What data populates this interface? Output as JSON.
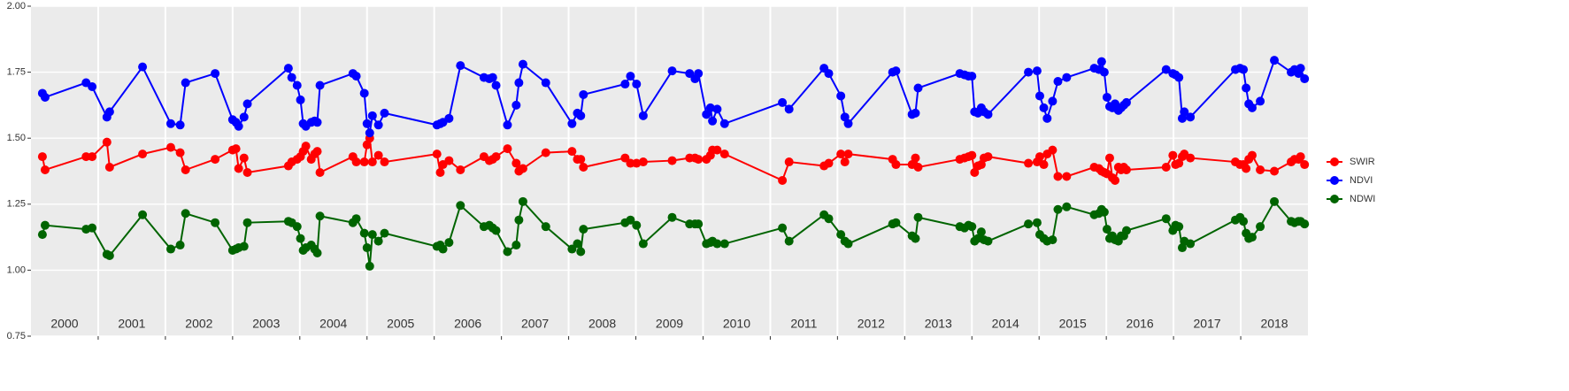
{
  "chart_data": {
    "type": "line",
    "xlim": [
      2000,
      2019
    ],
    "xticks": [
      2001,
      2002,
      2003,
      2004,
      2005,
      2006,
      2007,
      2008,
      2009,
      2010,
      2011,
      2012,
      2013,
      2014,
      2015,
      2016,
      2017,
      2018
    ],
    "x_labels": [
      {
        "value": 2000.5,
        "label": "2000"
      },
      {
        "value": 2001.5,
        "label": "2001"
      },
      {
        "value": 2002.5,
        "label": "2002"
      },
      {
        "value": 2003.5,
        "label": "2003"
      },
      {
        "value": 2004.5,
        "label": "2004"
      },
      {
        "value": 2005.5,
        "label": "2005"
      },
      {
        "value": 2006.5,
        "label": "2006"
      },
      {
        "value": 2007.5,
        "label": "2007"
      },
      {
        "value": 2008.5,
        "label": "2008"
      },
      {
        "value": 2009.5,
        "label": "2009"
      },
      {
        "value": 2010.5,
        "label": "2010"
      },
      {
        "value": 2011.5,
        "label": "2011"
      },
      {
        "value": 2012.5,
        "label": "2012"
      },
      {
        "value": 2013.5,
        "label": "2013"
      },
      {
        "value": 2014.5,
        "label": "2014"
      },
      {
        "value": 2015.5,
        "label": "2015"
      },
      {
        "value": 2016.5,
        "label": "2016"
      },
      {
        "value": 2017.5,
        "label": "2017"
      },
      {
        "value": 2018.5,
        "label": "2018"
      }
    ],
    "ylim": [
      0.75,
      2.0
    ],
    "yticks": [
      0.75,
      {
        "value": 1.0,
        "label": "1.00"
      },
      1.25,
      {
        "value": 1.5,
        "label": "1.50"
      },
      1.75,
      {
        "value": 2.0,
        "label": "2.00"
      }
    ],
    "grid": true,
    "legend": "right",
    "x": [
      2000.17,
      2000.21,
      2000.82,
      2000.91,
      2001.13,
      2001.17,
      2001.66,
      2002.08,
      2002.22,
      2002.3,
      2002.74,
      2003.0,
      2003.05,
      2003.09,
      2003.17,
      2003.22,
      2003.83,
      2003.88,
      2003.96,
      2004.01,
      2004.05,
      2004.09,
      2004.17,
      2004.22,
      2004.26,
      2004.3,
      2004.79,
      2004.84,
      2004.96,
      2005.0,
      2005.04,
      2005.08,
      2005.17,
      2005.26,
      2006.04,
      2006.09,
      2006.13,
      2006.22,
      2006.39,
      2006.74,
      2006.82,
      2006.87,
      2006.92,
      2007.09,
      2007.22,
      2007.26,
      2007.32,
      2007.66,
      2008.05,
      2008.13,
      2008.18,
      2008.22,
      2008.84,
      2008.92,
      2009.01,
      2009.11,
      2009.54,
      2009.8,
      2009.88,
      2009.93,
      2010.05,
      2010.11,
      2010.14,
      2010.21,
      2010.32,
      2011.18,
      2011.28,
      2011.8,
      2011.87,
      2012.05,
      2012.11,
      2012.16,
      2012.82,
      2012.87,
      2013.11,
      2013.16,
      2013.2,
      2013.82,
      2013.89,
      2013.95,
      2014.0,
      2014.04,
      2014.09,
      2014.14,
      2014.18,
      2014.24,
      2014.84,
      2014.97,
      2015.01,
      2015.07,
      2015.12,
      2015.2,
      2015.28,
      2015.41,
      2015.82,
      2015.89,
      2015.93,
      2015.97,
      2016.01,
      2016.05,
      2016.09,
      2016.13,
      2016.18,
      2016.22,
      2016.26,
      2016.3,
      2016.89,
      2016.99,
      2017.03,
      2017.08,
      2017.13,
      2017.16,
      2017.25,
      2017.92,
      2017.99,
      2018.04,
      2018.08,
      2018.12,
      2018.17,
      2018.29,
      2018.5,
      2018.75,
      2018.8,
      2018.86,
      2018.89,
      2018.95
    ],
    "series": [
      {
        "name": "SWIR",
        "color": "#ff0000",
        "values": [
          1.43,
          1.38,
          1.43,
          1.43,
          1.485,
          1.39,
          1.44,
          1.465,
          1.445,
          1.38,
          1.42,
          1.455,
          1.46,
          1.385,
          1.425,
          1.37,
          1.395,
          1.41,
          1.42,
          1.43,
          1.45,
          1.47,
          1.42,
          1.44,
          1.45,
          1.37,
          1.43,
          1.41,
          1.41,
          1.475,
          1.5,
          1.41,
          1.435,
          1.41,
          1.44,
          1.37,
          1.4,
          1.415,
          1.38,
          1.43,
          1.415,
          1.42,
          1.43,
          1.46,
          1.405,
          1.375,
          1.385,
          1.445,
          1.45,
          1.42,
          1.42,
          1.39,
          1.425,
          1.405,
          1.405,
          1.41,
          1.415,
          1.425,
          1.425,
          1.42,
          1.42,
          1.435,
          1.455,
          1.455,
          1.44,
          1.34,
          1.41,
          1.395,
          1.405,
          1.44,
          1.41,
          1.44,
          1.42,
          1.4,
          1.4,
          1.425,
          1.39,
          1.42,
          1.425,
          1.43,
          1.435,
          1.37,
          1.395,
          1.4,
          1.425,
          1.43,
          1.405,
          1.41,
          1.43,
          1.4,
          1.44,
          1.455,
          1.355,
          1.355,
          1.39,
          1.385,
          1.375,
          1.37,
          1.365,
          1.425,
          1.35,
          1.34,
          1.39,
          1.38,
          1.39,
          1.38,
          1.39,
          1.435,
          1.4,
          1.405,
          1.43,
          1.44,
          1.425,
          1.41,
          1.4,
          1.4,
          1.385,
          1.42,
          1.435,
          1.38,
          1.375,
          1.41,
          1.42,
          1.42,
          1.43,
          1.4
        ]
      },
      {
        "name": "NDVI",
        "color": "#0000ff",
        "values": [
          1.67,
          1.655,
          1.71,
          1.695,
          1.58,
          1.6,
          1.77,
          1.555,
          1.55,
          1.71,
          1.745,
          1.57,
          1.56,
          1.545,
          1.58,
          1.63,
          1.765,
          1.73,
          1.7,
          1.645,
          1.555,
          1.545,
          1.56,
          1.565,
          1.56,
          1.7,
          1.745,
          1.735,
          1.67,
          1.555,
          1.52,
          1.585,
          1.55,
          1.595,
          1.55,
          1.555,
          1.56,
          1.575,
          1.775,
          1.73,
          1.725,
          1.73,
          1.7,
          1.55,
          1.625,
          1.71,
          1.78,
          1.71,
          1.555,
          1.595,
          1.585,
          1.665,
          1.705,
          1.735,
          1.705,
          1.585,
          1.755,
          1.745,
          1.725,
          1.745,
          1.59,
          1.615,
          1.565,
          1.61,
          1.555,
          1.635,
          1.61,
          1.765,
          1.745,
          1.66,
          1.58,
          1.555,
          1.75,
          1.755,
          1.59,
          1.595,
          1.69,
          1.745,
          1.74,
          1.735,
          1.735,
          1.6,
          1.595,
          1.615,
          1.6,
          1.59,
          1.75,
          1.755,
          1.66,
          1.615,
          1.575,
          1.64,
          1.715,
          1.73,
          1.765,
          1.76,
          1.79,
          1.75,
          1.655,
          1.62,
          1.615,
          1.63,
          1.605,
          1.615,
          1.625,
          1.635,
          1.76,
          1.745,
          1.74,
          1.73,
          1.575,
          1.6,
          1.58,
          1.76,
          1.765,
          1.76,
          1.69,
          1.63,
          1.615,
          1.64,
          1.795,
          1.75,
          1.76,
          1.745,
          1.765,
          1.725
        ]
      },
      {
        "name": "NDWI",
        "color": "#006400",
        "values": [
          1.135,
          1.17,
          1.155,
          1.16,
          1.06,
          1.055,
          1.21,
          1.08,
          1.095,
          1.215,
          1.18,
          1.075,
          1.08,
          1.085,
          1.09,
          1.18,
          1.185,
          1.18,
          1.165,
          1.12,
          1.075,
          1.085,
          1.095,
          1.08,
          1.065,
          1.205,
          1.18,
          1.195,
          1.14,
          1.085,
          1.015,
          1.135,
          1.11,
          1.14,
          1.09,
          1.095,
          1.08,
          1.105,
          1.245,
          1.165,
          1.17,
          1.16,
          1.15,
          1.07,
          1.095,
          1.19,
          1.26,
          1.165,
          1.08,
          1.1,
          1.07,
          1.155,
          1.18,
          1.19,
          1.17,
          1.1,
          1.2,
          1.175,
          1.175,
          1.175,
          1.1,
          1.105,
          1.11,
          1.1,
          1.1,
          1.16,
          1.11,
          1.21,
          1.195,
          1.135,
          1.11,
          1.1,
          1.175,
          1.18,
          1.13,
          1.12,
          1.2,
          1.165,
          1.16,
          1.17,
          1.165,
          1.11,
          1.12,
          1.145,
          1.115,
          1.11,
          1.175,
          1.18,
          1.135,
          1.12,
          1.11,
          1.115,
          1.23,
          1.24,
          1.21,
          1.215,
          1.23,
          1.22,
          1.155,
          1.12,
          1.13,
          1.115,
          1.11,
          1.13,
          1.13,
          1.15,
          1.195,
          1.15,
          1.17,
          1.165,
          1.085,
          1.11,
          1.1,
          1.19,
          1.2,
          1.185,
          1.14,
          1.12,
          1.125,
          1.165,
          1.26,
          1.185,
          1.18,
          1.185,
          1.185,
          1.175
        ]
      }
    ]
  }
}
